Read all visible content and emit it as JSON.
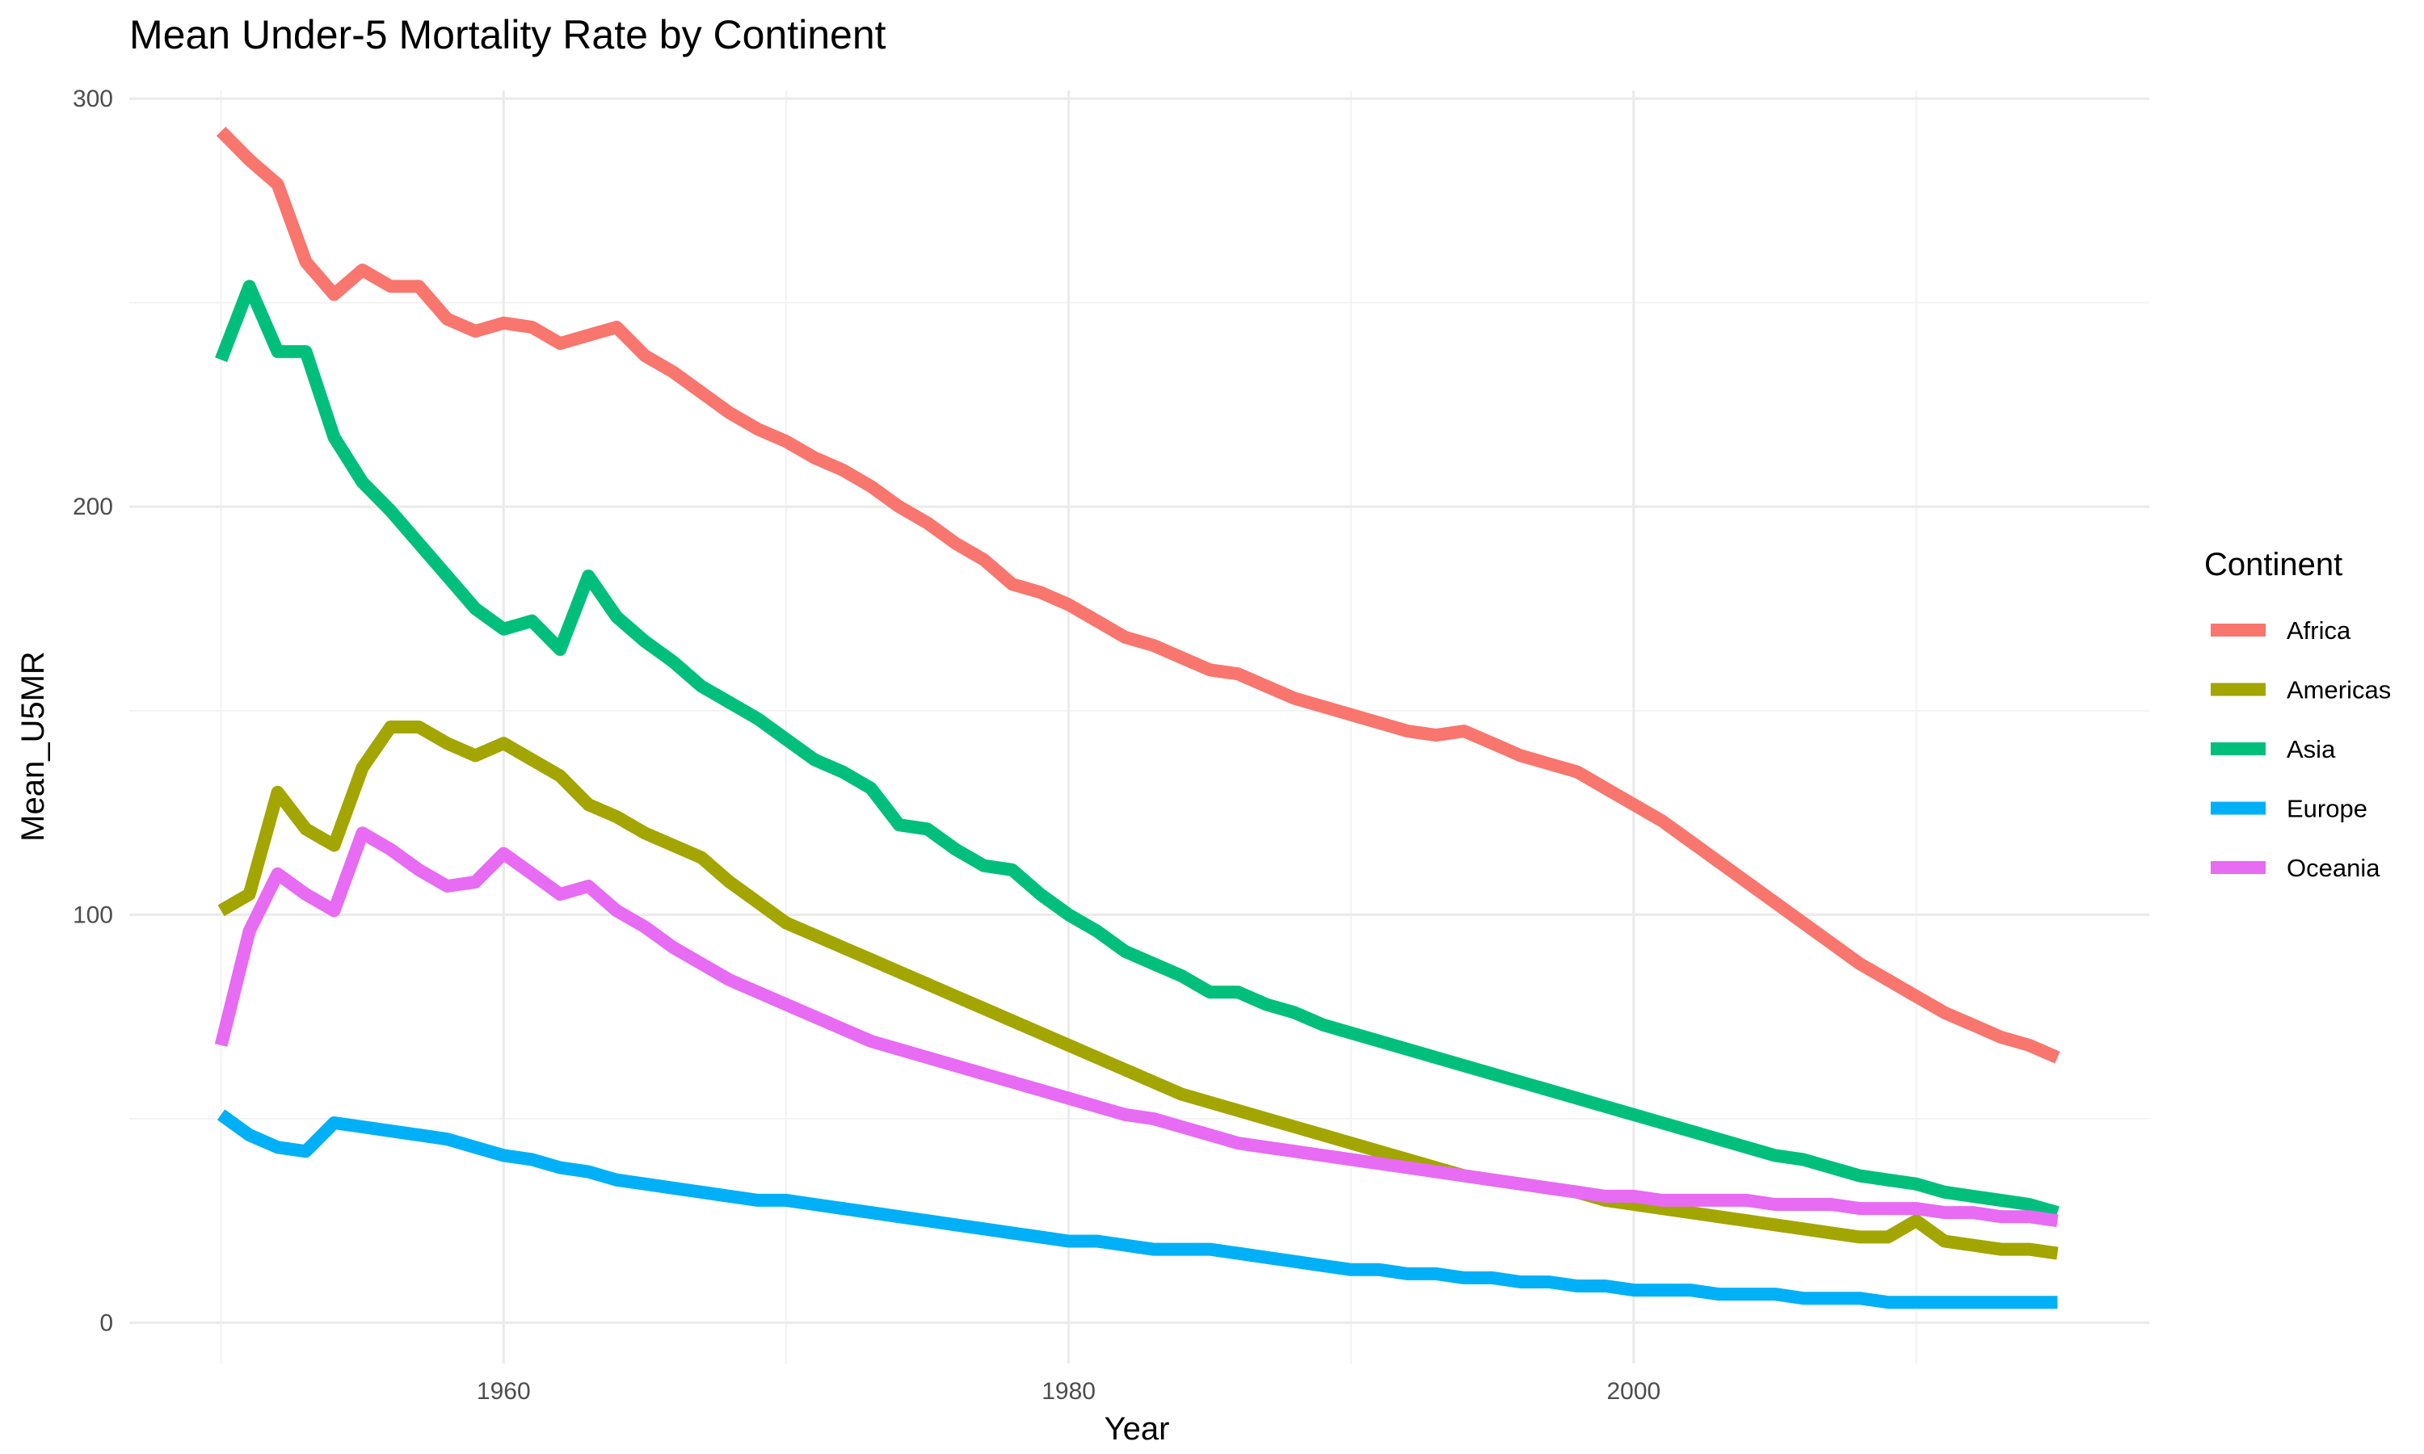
{
  "chart_data": {
    "type": "line",
    "title": "Mean Under-5 Mortality Rate by Continent",
    "xlabel": "Year",
    "ylabel": "Mean_U5MR",
    "xlim": [
      1946.75,
      2018.25
    ],
    "ylim": [
      -10,
      302
    ],
    "x_ticks": [
      1960,
      1980,
      2000
    ],
    "x_minor_ticks": [
      1950,
      1970,
      1990,
      2010
    ],
    "y_ticks": [
      0,
      100,
      200,
      300
    ],
    "y_minor_ticks": [
      50,
      150,
      250
    ],
    "grid": true,
    "legend": {
      "title": "Continent",
      "position": "right"
    },
    "x": [
      1950,
      1951,
      1952,
      1953,
      1954,
      1955,
      1956,
      1957,
      1958,
      1959,
      1960,
      1961,
      1962,
      1963,
      1964,
      1965,
      1966,
      1967,
      1968,
      1969,
      1970,
      1971,
      1972,
      1973,
      1974,
      1975,
      1976,
      1977,
      1978,
      1979,
      1980,
      1981,
      1982,
      1983,
      1984,
      1985,
      1986,
      1987,
      1988,
      1989,
      1990,
      1991,
      1992,
      1993,
      1994,
      1995,
      1996,
      1997,
      1998,
      1999,
      2000,
      2001,
      2002,
      2003,
      2004,
      2005,
      2006,
      2007,
      2008,
      2009,
      2010,
      2011,
      2012,
      2013,
      2014,
      2015
    ],
    "series": [
      {
        "name": "Africa",
        "color": "#F8766D",
        "values": [
          292,
          285,
          279,
          260,
          252,
          258,
          254,
          254,
          246,
          243,
          245,
          244,
          240,
          242,
          244,
          237,
          233,
          228,
          223,
          219,
          216,
          212,
          209,
          205,
          200,
          196,
          191,
          187,
          181,
          179,
          176,
          172,
          168,
          166,
          163,
          160,
          159,
          156,
          153,
          151,
          149,
          147,
          145,
          144,
          145,
          142,
          139,
          137,
          135,
          131,
          127,
          123,
          118,
          113,
          108,
          103,
          98,
          93,
          88,
          84,
          80,
          76,
          73,
          70,
          68,
          65
        ]
      },
      {
        "name": "Americas",
        "color": "#A3A500",
        "values": [
          101,
          105,
          130,
          121,
          117,
          136,
          146,
          146,
          142,
          139,
          142,
          138,
          134,
          127,
          124,
          120,
          117,
          114,
          108,
          103,
          98,
          95,
          92,
          89,
          86,
          83,
          80,
          77,
          74,
          71,
          68,
          65,
          62,
          59,
          56,
          54,
          52,
          50,
          48,
          46,
          44,
          42,
          40,
          38,
          36,
          35,
          34,
          33,
          32,
          30,
          29,
          28,
          27,
          26,
          25,
          24,
          23,
          22,
          21,
          21,
          25,
          20,
          19,
          18,
          18,
          17
        ]
      },
      {
        "name": "Asia",
        "color": "#00BF7D",
        "values": [
          236,
          254,
          238,
          238,
          217,
          206,
          199,
          191,
          183,
          175,
          170,
          172,
          165,
          183,
          173,
          167,
          162,
          156,
          152,
          148,
          143,
          138,
          135,
          131,
          122,
          121,
          116,
          112,
          111,
          105,
          100,
          96,
          91,
          88,
          85,
          81,
          81,
          78,
          76,
          73,
          71,
          69,
          67,
          65,
          63,
          61,
          59,
          57,
          55,
          53,
          51,
          49,
          47,
          45,
          43,
          41,
          40,
          38,
          36,
          35,
          34,
          32,
          31,
          30,
          29,
          27
        ]
      },
      {
        "name": "Europe",
        "color": "#00B0F6",
        "values": [
          51,
          46,
          43,
          42,
          49,
          48,
          47,
          46,
          45,
          43,
          41,
          40,
          38,
          37,
          35,
          34,
          33,
          32,
          31,
          30,
          30,
          29,
          28,
          27,
          26,
          25,
          24,
          23,
          22,
          21,
          20,
          20,
          19,
          18,
          18,
          18,
          17,
          16,
          15,
          14,
          13,
          13,
          12,
          12,
          11,
          11,
          10,
          10,
          9,
          9,
          8,
          8,
          8,
          7,
          7,
          7,
          6,
          6,
          6,
          5,
          5,
          5,
          5,
          5,
          5,
          5
        ]
      },
      {
        "name": "Oceania",
        "color": "#E76BF3",
        "values": [
          68,
          96,
          110,
          105,
          101,
          120,
          116,
          111,
          107,
          108,
          115,
          110,
          105,
          107,
          101,
          97,
          92,
          88,
          84,
          81,
          78,
          75,
          72,
          69,
          67,
          65,
          63,
          61,
          59,
          57,
          55,
          53,
          51,
          50,
          48,
          46,
          44,
          43,
          42,
          41,
          40,
          39,
          38,
          37,
          36,
          35,
          34,
          33,
          32,
          31,
          31,
          30,
          30,
          30,
          30,
          29,
          29,
          29,
          28,
          28,
          28,
          27,
          27,
          26,
          26,
          25
        ]
      }
    ]
  }
}
